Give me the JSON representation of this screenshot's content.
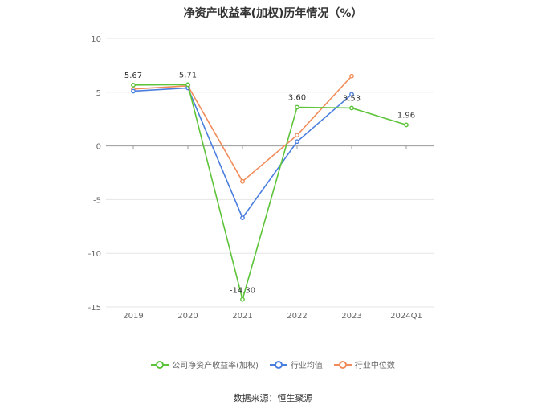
{
  "chart_data": {
    "type": "line",
    "title": "净资产收益率(加权)历年情况（%）",
    "categories": [
      "2019",
      "2020",
      "2021",
      "2022",
      "2023",
      "2024Q1"
    ],
    "y_ticks": [
      10,
      5,
      0,
      -5,
      -10,
      -15
    ],
    "ylim": [
      -15,
      10
    ],
    "grid": true,
    "legend_position": "bottom",
    "series": [
      {
        "name": "公司净资产收益率(加权)",
        "color": "#5dc43a",
        "values": [
          5.67,
          5.71,
          -14.3,
          3.6,
          3.53,
          1.96
        ],
        "labels": [
          "5.67",
          "5.71",
          "-14.30",
          "3.60",
          "3.53",
          "1.96"
        ]
      },
      {
        "name": "行业均值",
        "color": "#4a7ede",
        "values": [
          5.1,
          5.4,
          -6.7,
          0.4,
          4.8,
          null
        ]
      },
      {
        "name": "行业中位数",
        "color": "#f08c5a",
        "values": [
          5.3,
          5.6,
          -3.3,
          1.0,
          6.5,
          null
        ]
      }
    ]
  },
  "source_text": "数据来源：恒生聚源"
}
